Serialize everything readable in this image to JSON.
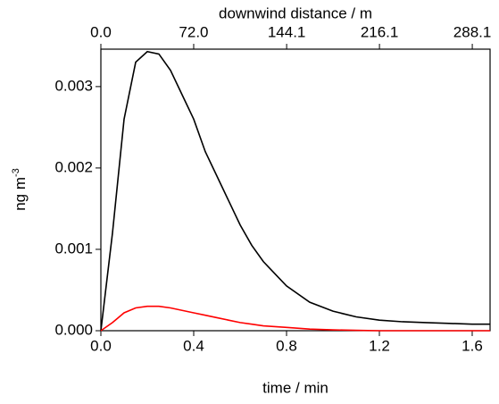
{
  "chart_data": {
    "type": "line",
    "x_label": "time / min",
    "x2_label": "downwind distance / m",
    "y_label": "ng m",
    "y_label_superscript": "-3",
    "x": [
      0,
      0.05,
      0.1,
      0.15,
      0.2,
      0.25,
      0.3,
      0.35,
      0.4,
      0.45,
      0.5,
      0.55,
      0.6,
      0.65,
      0.7,
      0.75,
      0.8,
      0.9,
      1.0,
      1.1,
      1.2,
      1.3,
      1.4,
      1.5,
      1.6,
      1.677
    ],
    "series": [
      {
        "color": "#000000",
        "values": [
          0,
          0.0012,
          0.0026,
          0.0033,
          0.00343,
          0.0034,
          0.0032,
          0.0029,
          0.0026,
          0.0022,
          0.0019,
          0.0016,
          0.0013,
          0.00105,
          0.00085,
          0.0007,
          0.00055,
          0.00035,
          0.00024,
          0.00017,
          0.00013,
          0.00011,
          0.0001,
          9e-05,
          8e-05,
          8e-05
        ]
      },
      {
        "color": "#ff0000",
        "values": [
          0,
          0.0001,
          0.00022,
          0.00028,
          0.0003,
          0.0003,
          0.00028,
          0.00025,
          0.00022,
          0.00019,
          0.00016,
          0.00013,
          0.0001,
          8e-05,
          6e-05,
          5e-05,
          4e-05,
          2e-05,
          1e-05,
          5e-06,
          0,
          0,
          0,
          0,
          0,
          0
        ]
      }
    ],
    "xlim": [
      0,
      1.677
    ],
    "xticks": [
      {
        "value": 0,
        "label": "0.0"
      },
      0.4,
      0.8,
      1.2,
      1.6
    ],
    "x2lim": [
      0,
      301.9
    ],
    "x2ticks": [
      {
        "value": 0,
        "label": "0.0"
      },
      {
        "value": 72,
        "label": "72.0"
      },
      144.1,
      216.1,
      288.1
    ],
    "ylim": [
      0,
      0.00346
    ],
    "yticks": [
      {
        "value": 0,
        "label": "0.000"
      },
      0.001,
      0.002,
      0.003
    ]
  }
}
